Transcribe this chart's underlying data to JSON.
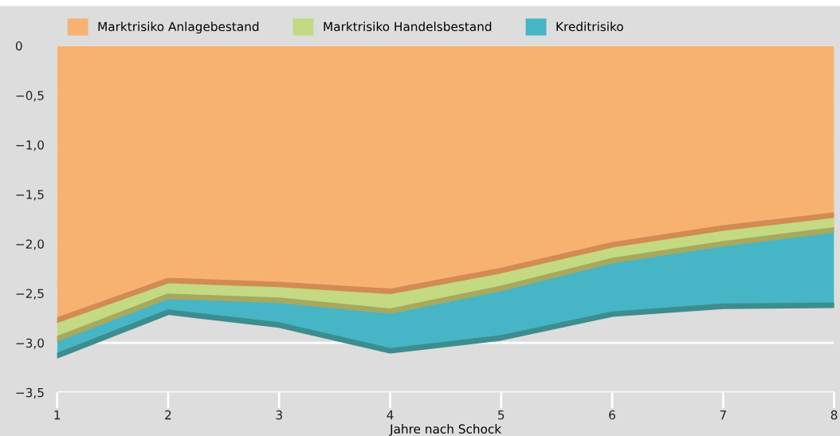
{
  "chart_data": {
    "type": "area",
    "stacked": true,
    "xlabel": "Jahre nach Schock",
    "x": [
      1,
      2,
      3,
      4,
      5,
      6,
      7,
      8
    ],
    "series": [
      {
        "name": "Marktrisiko Anlagebestand",
        "color": "#f7b272",
        "values": [
          -2.77,
          -2.37,
          -2.41,
          -2.48,
          -2.27,
          -2.01,
          -1.84,
          -1.71
        ]
      },
      {
        "name": "Marktrisiko Handelsbestand",
        "color": "#c3d982",
        "values": [
          -0.19,
          -0.16,
          -0.16,
          -0.2,
          -0.18,
          -0.16,
          -0.16,
          -0.15
        ]
      },
      {
        "name": "Kreditrisiko",
        "color": "#46b5c6",
        "values": [
          -0.17,
          -0.16,
          -0.25,
          -0.4,
          -0.5,
          -0.54,
          -0.63,
          -0.76
        ]
      }
    ],
    "xlim": [
      1,
      8
    ],
    "xticks": [
      1,
      2,
      3,
      4,
      5,
      6,
      7,
      8
    ],
    "ylim": [
      -3.5,
      0
    ],
    "yticks": [
      0,
      {
        "value": -0.5,
        "label": "−0,5"
      },
      {
        "value": -1.0,
        "label": "−1,0"
      },
      {
        "value": -1.5,
        "label": "−1,5"
      },
      {
        "value": -2.0,
        "label": "−2,0"
      },
      {
        "value": -2.5,
        "label": "−2,5"
      },
      {
        "value": -3.0,
        "label": "−3,0"
      },
      {
        "value": -3.5,
        "label": "−3,5"
      }
    ],
    "grid": "y",
    "legend": "top"
  }
}
